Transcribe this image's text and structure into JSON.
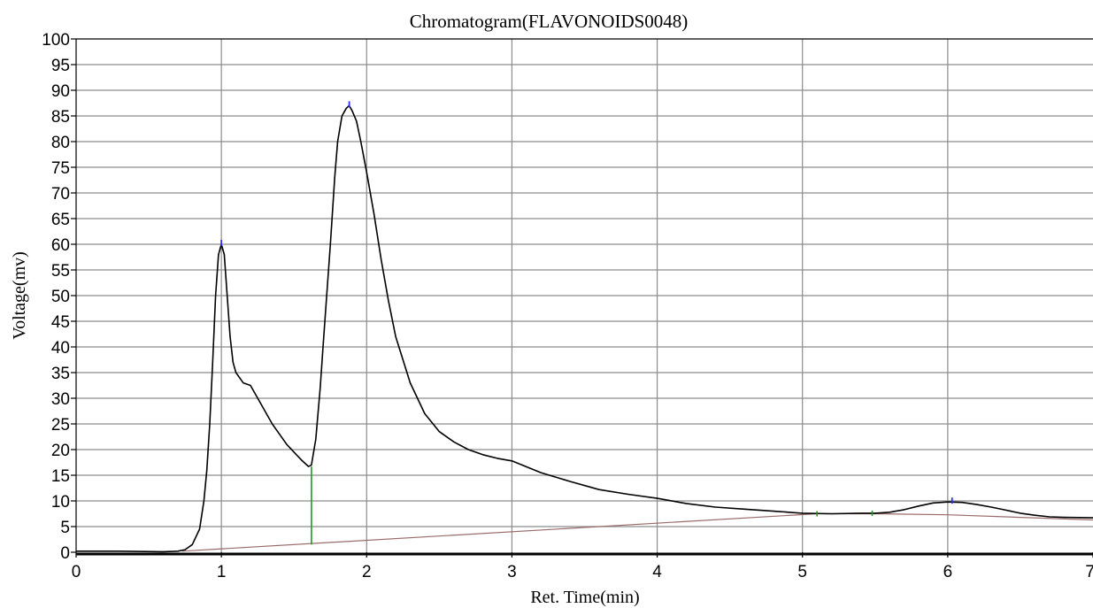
{
  "chart_data": {
    "type": "line",
    "title": "Chromatogram(FLAVONOIDS0048)",
    "xlabel": "Ret. Time(min)",
    "ylabel": "Voltage(mv)",
    "xlim": [
      0,
      7
    ],
    "ylim": [
      0,
      100
    ],
    "x_ticks": [
      "0",
      "1",
      "2",
      "3",
      "4",
      "5",
      "6",
      "7"
    ],
    "y_ticks": [
      "0",
      "5",
      "10",
      "15",
      "20",
      "25",
      "30",
      "35",
      "40",
      "45",
      "50",
      "55",
      "60",
      "65",
      "70",
      "75",
      "80",
      "85",
      "90",
      "95",
      "100"
    ],
    "grid": true,
    "series": [
      {
        "color": "#000000",
        "x": [
          0,
          0.3,
          0.6,
          0.7,
          0.75,
          0.8,
          0.85,
          0.88,
          0.9,
          0.92,
          0.94,
          0.96,
          0.98,
          1.0,
          1.02,
          1.04,
          1.06,
          1.08,
          1.1,
          1.15,
          1.2,
          1.25,
          1.3,
          1.35,
          1.4,
          1.45,
          1.5,
          1.55,
          1.6,
          1.62,
          1.65,
          1.68,
          1.7,
          1.72,
          1.75,
          1.78,
          1.8,
          1.83,
          1.86,
          1.88,
          1.9,
          1.93,
          1.96,
          2.0,
          2.05,
          2.1,
          2.15,
          2.2,
          2.3,
          2.4,
          2.5,
          2.6,
          2.7,
          2.8,
          2.9,
          3.0,
          3.2,
          3.4,
          3.6,
          3.8,
          4.0,
          4.2,
          4.4,
          4.6,
          4.8,
          5.0,
          5.2,
          5.4,
          5.5,
          5.6,
          5.7,
          5.8,
          5.9,
          6.0,
          6.1,
          6.2,
          6.3,
          6.4,
          6.5,
          6.6,
          6.7,
          6.8,
          7.0
        ],
        "y": [
          0.2,
          0.2,
          0.1,
          0.2,
          0.5,
          1.5,
          4.5,
          10,
          16,
          25,
          37,
          50,
          58,
          60,
          58,
          50,
          42,
          37,
          35,
          33,
          32.5,
          30,
          27.5,
          25,
          23,
          21,
          19.5,
          18,
          16.7,
          17,
          22,
          32,
          40,
          48,
          60,
          73,
          80,
          85,
          86.5,
          87,
          86,
          84,
          80,
          74,
          66,
          57,
          49,
          42,
          33,
          27,
          23.5,
          21.5,
          20,
          19,
          18.3,
          17.8,
          15.5,
          13.8,
          12.2,
          11.3,
          10.5,
          9.5,
          8.8,
          8.4,
          8.0,
          7.6,
          7.5,
          7.6,
          7.6,
          7.8,
          8.3,
          9.0,
          9.6,
          9.8,
          9.7,
          9.3,
          8.8,
          8.2,
          7.6,
          7.2,
          6.9,
          6.8,
          6.7
        ]
      }
    ],
    "baseline_segments": [
      {
        "x": [
          0.73,
          5.1
        ],
        "y": [
          0.2,
          7.5
        ]
      },
      {
        "x": [
          5.1,
          5.5,
          6.0,
          7.0
        ],
        "y": [
          7.5,
          7.5,
          7.3,
          6.3
        ]
      }
    ],
    "peak_dividers": [
      {
        "x": 1.62,
        "y_from": 1.5,
        "y_to": 16.7
      }
    ],
    "peak_markers": [
      {
        "x": 1.0,
        "y": 60
      },
      {
        "x": 1.88,
        "y": 87
      },
      {
        "x": 6.03,
        "y": 9.8
      }
    ],
    "baseline_markers": [
      {
        "x": 5.1,
        "y": 7.5
      },
      {
        "x": 5.48,
        "y": 7.6
      }
    ]
  }
}
